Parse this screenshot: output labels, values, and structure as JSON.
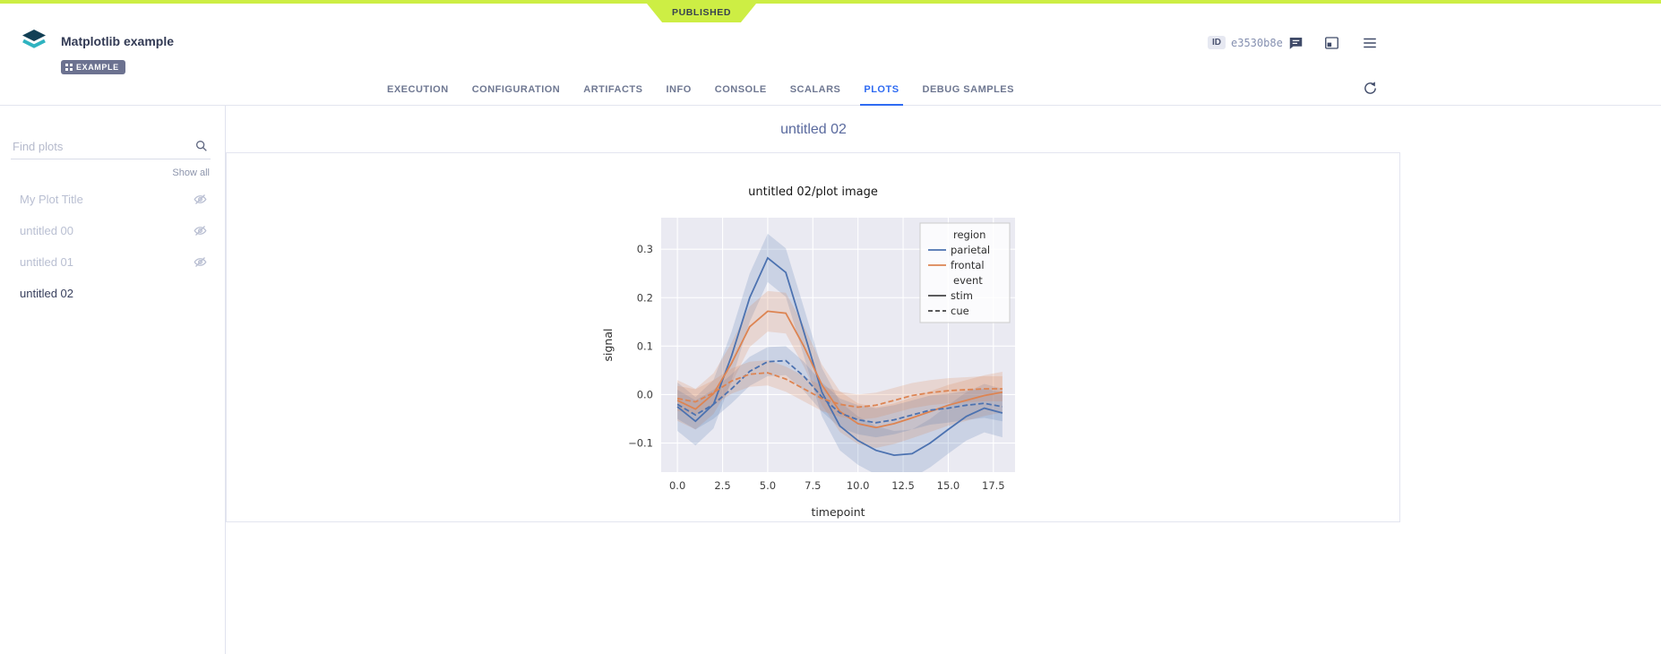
{
  "ribbon": {
    "status": "PUBLISHED",
    "color": "#cdee44"
  },
  "header": {
    "title": "Matplotlib example",
    "badge": "EXAMPLE",
    "id_label": "ID",
    "id_value": "e3530b8e"
  },
  "icons": {
    "logo": "stacked-layers",
    "comments": "speech-bubble",
    "panel": "layout-panel",
    "menu": "hamburger",
    "refresh": "circular-arrow",
    "search": "magnifier",
    "hidden_plot": "eye-off"
  },
  "colors": {
    "accent_blue": "#2f6bf2",
    "published_lime": "#cdee44",
    "series_blue": "#4c72b0",
    "series_orange": "#dd8452",
    "plot_background": "#eaeaf2"
  },
  "tabs": {
    "items": [
      "EXECUTION",
      "CONFIGURATION",
      "ARTIFACTS",
      "INFO",
      "CONSOLE",
      "SCALARS",
      "PLOTS",
      "DEBUG SAMPLES"
    ],
    "active": "PLOTS"
  },
  "sidebar": {
    "search_placeholder": "Find plots",
    "search_value": "",
    "show_all": "Show all",
    "items": [
      {
        "label": "My Plot Title",
        "hidden": true,
        "selected": false
      },
      {
        "label": "untitled 00",
        "hidden": true,
        "selected": false
      },
      {
        "label": "untitled 01",
        "hidden": true,
        "selected": false
      },
      {
        "label": "untitled 02",
        "hidden": false,
        "selected": true
      }
    ]
  },
  "main": {
    "group_title": "untitled 02",
    "plot_title": "untitled 02/plot image"
  },
  "chart_data": {
    "type": "line",
    "title": "untitled 02/plot image",
    "xlabel": "timepoint",
    "ylabel": "signal",
    "xlim": [
      -0.9,
      18.7
    ],
    "ylim": [
      -0.16,
      0.365
    ],
    "xticks": [
      0.0,
      2.5,
      5.0,
      7.5,
      10.0,
      12.5,
      15.0,
      17.5
    ],
    "yticks": [
      -0.1,
      0.0,
      0.1,
      0.2,
      0.3
    ],
    "background": "#eaeaf2",
    "grid": true,
    "legend_position": "upper right",
    "legend": {
      "groups": [
        {
          "title": "region",
          "entries": [
            {
              "label": "parietal",
              "color": "#4c72b0",
              "dash": false
            },
            {
              "label": "frontal",
              "color": "#dd8452",
              "dash": false
            }
          ]
        },
        {
          "title": "event",
          "entries": [
            {
              "label": "stim",
              "color": "#444444",
              "dash": false
            },
            {
              "label": "cue",
              "color": "#444444",
              "dash": true
            }
          ]
        }
      ]
    },
    "x": [
      0,
      1,
      2,
      3,
      4,
      5,
      6,
      7,
      8,
      9,
      10,
      11,
      12,
      13,
      14,
      15,
      16,
      17,
      18
    ],
    "series": [
      {
        "name": "parietal-stim",
        "color": "#4c72b0",
        "dash": false,
        "band": 0.05,
        "y": [
          -0.025,
          -0.055,
          -0.02,
          0.08,
          0.2,
          0.282,
          0.252,
          0.13,
          0.005,
          -0.065,
          -0.095,
          -0.115,
          -0.125,
          -0.122,
          -0.1,
          -0.072,
          -0.045,
          -0.028,
          -0.038
        ]
      },
      {
        "name": "frontal-stim",
        "color": "#dd8452",
        "dash": false,
        "band": 0.042,
        "y": [
          -0.012,
          -0.03,
          0.002,
          0.065,
          0.14,
          0.172,
          0.168,
          0.1,
          0.02,
          -0.035,
          -0.06,
          -0.068,
          -0.06,
          -0.048,
          -0.035,
          -0.022,
          -0.012,
          -0.002,
          0.005
        ]
      },
      {
        "name": "parietal-cue",
        "color": "#4c72b0",
        "dash": true,
        "band": 0.03,
        "y": [
          -0.02,
          -0.042,
          -0.02,
          0.012,
          0.048,
          0.068,
          0.07,
          0.038,
          -0.005,
          -0.038,
          -0.052,
          -0.058,
          -0.052,
          -0.042,
          -0.032,
          -0.028,
          -0.022,
          -0.018,
          -0.025
        ]
      },
      {
        "name": "frontal-cue",
        "color": "#dd8452",
        "dash": true,
        "band": 0.026,
        "y": [
          -0.008,
          -0.015,
          0.004,
          0.028,
          0.042,
          0.045,
          0.032,
          0.012,
          -0.008,
          -0.02,
          -0.026,
          -0.022,
          -0.012,
          -0.002,
          0.004,
          0.008,
          0.01,
          0.012,
          0.012
        ]
      }
    ]
  }
}
